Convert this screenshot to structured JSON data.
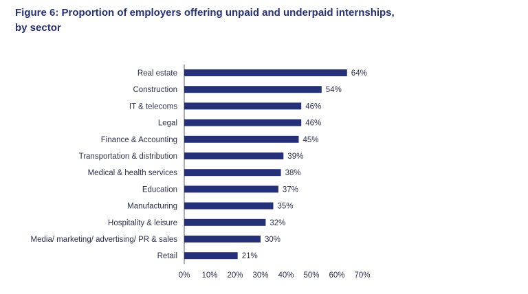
{
  "chart_data": {
    "type": "bar",
    "orientation": "horizontal",
    "title": "Figure 6: Proportion of employers offering unpaid and underpaid internships, by sector",
    "categories": [
      "Real estate",
      "Construction",
      "IT & telecoms",
      "Legal",
      "Finance & Accounting",
      "Transportation & distribution",
      "Medical & health services",
      "Education",
      "Manufacturing",
      "Hospitality & leisure",
      "Media/ marketing/ advertising/ PR & sales",
      "Retail"
    ],
    "values": [
      64,
      54,
      46,
      46,
      45,
      39,
      38,
      37,
      35,
      32,
      30,
      21
    ],
    "value_labels": [
      "64%",
      "54%",
      "46%",
      "46%",
      "45%",
      "39%",
      "38%",
      "37%",
      "35%",
      "32%",
      "30%",
      "21%"
    ],
    "xlim": [
      0,
      70
    ],
    "xticks": [
      0,
      10,
      20,
      30,
      40,
      50,
      60,
      70
    ],
    "xtick_labels": [
      "0%",
      "10%",
      "20%",
      "30%",
      "40%",
      "50%",
      "60%",
      "70%"
    ],
    "xlabel": "",
    "ylabel": "",
    "grid": false,
    "legend": "none",
    "colors": {
      "bar": "#25307a",
      "title": "#25307a",
      "text": "#2a2f4a",
      "axis": "#2a2f4a"
    }
  }
}
